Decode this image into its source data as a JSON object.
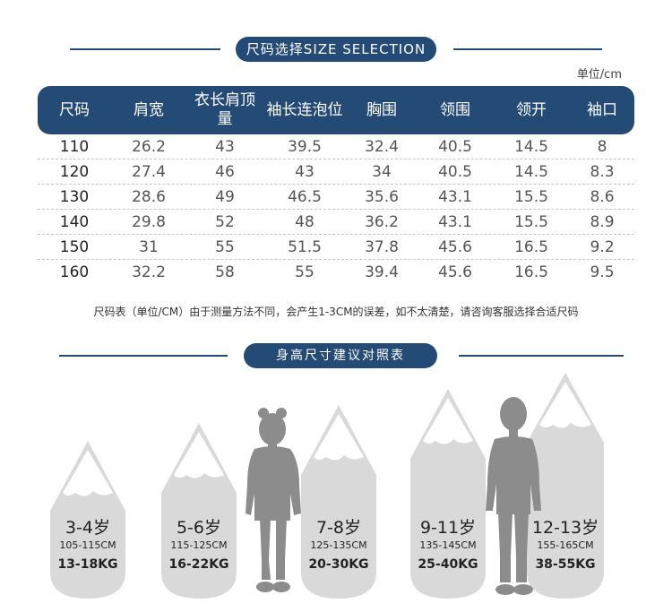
{
  "header": {
    "title": "尺码选择SIZE SELECTION",
    "unit": "单位/cm"
  },
  "table": {
    "headers": [
      "尺码",
      "肩宽",
      "衣长肩顶量",
      "袖长连泡位",
      "胸围",
      "领围",
      "领开",
      "袖口"
    ],
    "rows": [
      [
        "110",
        "26.2",
        "43",
        "39.5",
        "32.4",
        "40.5",
        "14.5",
        "8"
      ],
      [
        "120",
        "27.4",
        "46",
        "43",
        "34",
        "40.5",
        "14.5",
        "8.3"
      ],
      [
        "130",
        "28.6",
        "49",
        "46.5",
        "35.6",
        "43.1",
        "15.5",
        "8.6"
      ],
      [
        "140",
        "29.8",
        "52",
        "48",
        "36.2",
        "43.1",
        "15.5",
        "8.9"
      ],
      [
        "150",
        "31",
        "55",
        "51.5",
        "37.8",
        "45.6",
        "16.5",
        "9.2"
      ],
      [
        "160",
        "32.2",
        "58",
        "55",
        "39.4",
        "45.6",
        "16.5",
        "9.5"
      ]
    ]
  },
  "note": "尺码表（单位/CM）由于测量方法不同，会产生1-3CM的误差，如不太清楚，请咨询客服选择合适尺码",
  "height_section": {
    "title": "身高尺寸建议对照表",
    "items": [
      {
        "age": "3-4岁",
        "height": "105-115CM",
        "weight": "13-18KG"
      },
      {
        "age": "5-6岁",
        "height": "115-125CM",
        "weight": "16-22KG"
      },
      {
        "age": "7-8岁",
        "height": "125-135CM",
        "weight": "20-30KG"
      },
      {
        "age": "9-11岁",
        "height": "135-145CM",
        "weight": "25-40KG"
      },
      {
        "age": "12-13岁",
        "height": "155-165CM",
        "weight": "38-55KG"
      }
    ]
  },
  "colors": {
    "navy": "#244a76",
    "capsule": "#d9d9d9",
    "silhouette": "#8c8c8c"
  }
}
